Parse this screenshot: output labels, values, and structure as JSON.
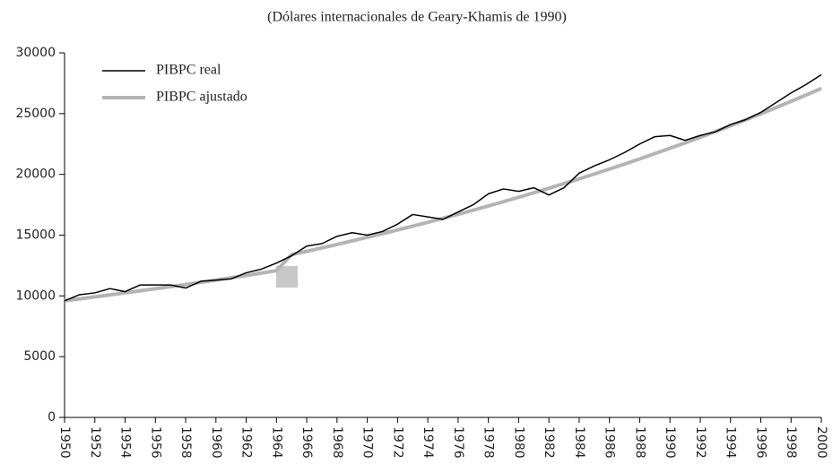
{
  "chart_data": {
    "type": "line",
    "title": "(Dólares internacionales de Geary-Khamis de 1990)",
    "x": [
      1950,
      1951,
      1952,
      1953,
      1954,
      1955,
      1956,
      1957,
      1958,
      1959,
      1960,
      1961,
      1962,
      1963,
      1964,
      1965,
      1966,
      1967,
      1968,
      1969,
      1970,
      1971,
      1972,
      1973,
      1974,
      1975,
      1976,
      1977,
      1978,
      1979,
      1980,
      1981,
      1982,
      1983,
      1984,
      1985,
      1986,
      1987,
      1988,
      1989,
      1990,
      1991,
      1992,
      1993,
      1994,
      1995,
      1996,
      1997,
      1998,
      1999,
      2000
    ],
    "series": [
      {
        "name": "PIBPC real",
        "color": "#000000",
        "width": 1.5,
        "values": [
          9600,
          10100,
          10250,
          10600,
          10350,
          10900,
          10900,
          10900,
          10650,
          11200,
          11300,
          11400,
          11900,
          12200,
          12700,
          13300,
          14100,
          14300,
          14900,
          15200,
          15000,
          15300,
          15900,
          16700,
          16500,
          16300,
          16900,
          17500,
          18400,
          18800,
          18600,
          18900,
          18300,
          18900,
          20100,
          20700,
          21200,
          21800,
          22500,
          23100,
          23200,
          22800,
          23200,
          23500,
          24100,
          24500,
          25100,
          25900,
          26700,
          27400,
          28200
        ]
      },
      {
        "name": "PIBPC ajustado",
        "color": "#b4b4b6",
        "width": 4,
        "values": [
          9600,
          9760,
          9920,
          10080,
          10250,
          10420,
          10590,
          10760,
          10940,
          11120,
          11300,
          11490,
          11680,
          11880,
          12080,
          13400,
          13672,
          13950,
          14233,
          14522,
          14817,
          15118,
          15425,
          15738,
          16057,
          16383,
          16716,
          17055,
          17401,
          17754,
          18115,
          18483,
          18858,
          19241,
          19631,
          20030,
          20436,
          20851,
          21274,
          21706,
          22147,
          22596,
          23055,
          23523,
          24000,
          24487,
          24984,
          25492,
          26009,
          26537,
          27076
        ]
      }
    ],
    "xlim": [
      1950,
      2000
    ],
    "xticks": [
      1950,
      1952,
      1954,
      1956,
      1958,
      1960,
      1962,
      1964,
      1966,
      1968,
      1970,
      1972,
      1974,
      1976,
      1978,
      1980,
      1982,
      1984,
      1986,
      1988,
      1990,
      1992,
      1994,
      1996,
      1998,
      2000
    ],
    "ylim": [
      0,
      30000
    ],
    "yticks": [
      0,
      5000,
      10000,
      15000,
      20000,
      25000,
      30000
    ],
    "legend": "upper-left"
  }
}
